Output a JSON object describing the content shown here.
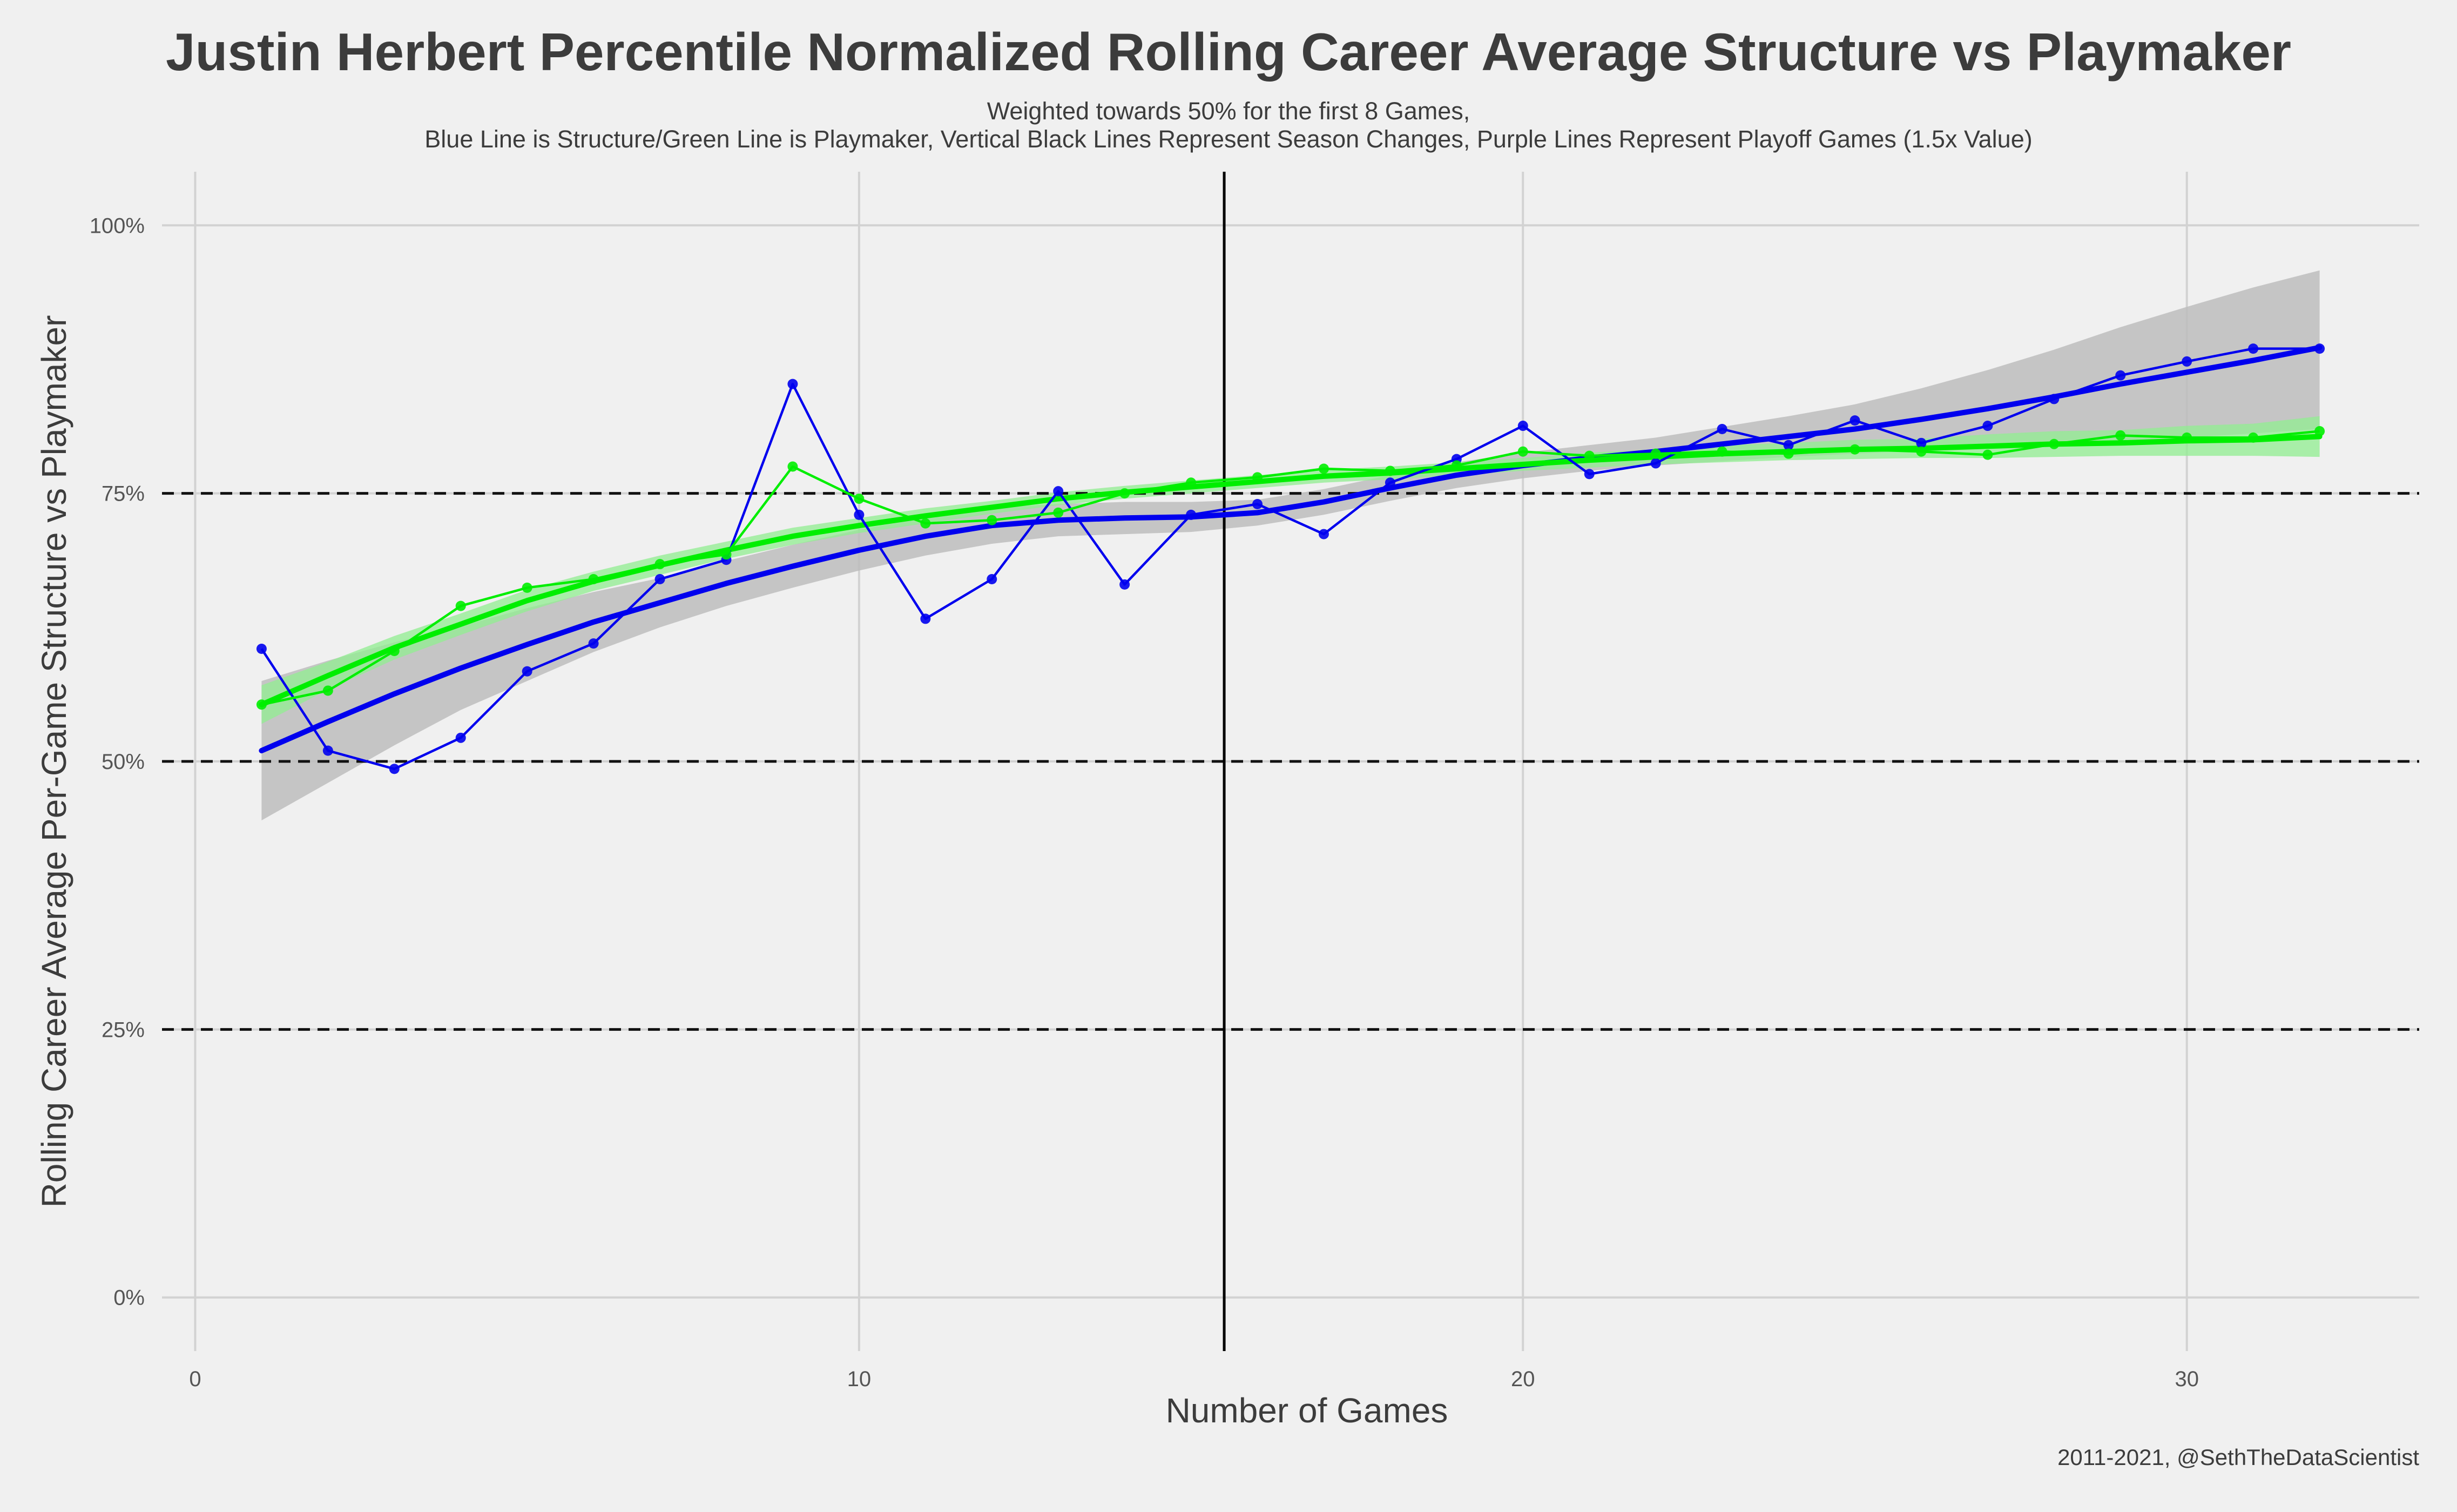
{
  "chart_data": {
    "type": "line",
    "title": "Justin Herbert Percentile Normalized Rolling Career Average Structure vs Playmaker",
    "subtitle_lines": [
      "Weighted towards 50% for the first 8 Games,",
      "Blue Line is Structure/Green Line is Playmaker, Vertical Black Lines Represent Season Changes, Purple Lines Represent Playoff Games (1.5x Value)"
    ],
    "xlabel": "Number of Games",
    "ylabel": "Rolling Career Average Per-Game Structure vs Playmaker",
    "caption": "2011-2021, @SethTheDataScientist",
    "xlim": [
      -0.5,
      33.5
    ],
    "ylim": [
      -0.05,
      1.05
    ],
    "x_ticks": [
      0,
      10,
      20,
      30
    ],
    "y_ticks": [
      0,
      0.25,
      0.5,
      0.75,
      1.0
    ],
    "y_tick_labels": [
      "0%",
      "25%",
      "50%",
      "75%",
      "100%"
    ],
    "dashed_hlines": [
      0.25,
      0.5,
      0.75
    ],
    "season_change_vlines": [
      15.5
    ],
    "grid": true,
    "colors": {
      "structure": "#0000ee",
      "playmaker": "#00ee00",
      "season_line": "#000000",
      "dashed": "#111111",
      "band_structure": "#bdbdbd",
      "band_playmaker": "#90ee90"
    },
    "series": [
      {
        "name": "Structure",
        "color": "#0000ee",
        "x": [
          1,
          2,
          3,
          4,
          5,
          6,
          7,
          8,
          9,
          10,
          11,
          12,
          13,
          14,
          15,
          16,
          17,
          18,
          19,
          20,
          21,
          22,
          23,
          24,
          25,
          26,
          27,
          28,
          29,
          30,
          31,
          32
        ],
        "values": [
          0.605,
          0.51,
          0.493,
          0.522,
          0.584,
          0.61,
          0.67,
          0.688,
          0.852,
          0.73,
          0.633,
          0.67,
          0.752,
          0.665,
          0.73,
          0.74,
          0.712,
          0.76,
          0.782,
          0.813,
          0.768,
          0.778,
          0.81,
          0.795,
          0.818,
          0.797,
          0.813,
          0.838,
          0.86,
          0.873,
          0.885,
          0.885
        ],
        "smooth": [
          0.51,
          0.537,
          0.563,
          0.587,
          0.609,
          0.63,
          0.648,
          0.666,
          0.682,
          0.697,
          0.71,
          0.72,
          0.725,
          0.727,
          0.728,
          0.732,
          0.742,
          0.755,
          0.767,
          0.776,
          0.783,
          0.789,
          0.796,
          0.803,
          0.81,
          0.819,
          0.829,
          0.84,
          0.852,
          0.863,
          0.874,
          0.886
        ],
        "band_lower": [
          0.445,
          0.48,
          0.515,
          0.548,
          0.575,
          0.602,
          0.625,
          0.645,
          0.662,
          0.678,
          0.692,
          0.703,
          0.71,
          0.712,
          0.714,
          0.72,
          0.73,
          0.743,
          0.755,
          0.764,
          0.771,
          0.776,
          0.78,
          0.784,
          0.787,
          0.79,
          0.793,
          0.796,
          0.799,
          0.802,
          0.806,
          0.81
        ],
        "band_upper": [
          0.575,
          0.594,
          0.611,
          0.626,
          0.643,
          0.658,
          0.671,
          0.687,
          0.702,
          0.716,
          0.728,
          0.737,
          0.74,
          0.742,
          0.742,
          0.744,
          0.754,
          0.767,
          0.779,
          0.788,
          0.795,
          0.802,
          0.812,
          0.822,
          0.833,
          0.848,
          0.865,
          0.884,
          0.905,
          0.924,
          0.942,
          0.958
        ]
      },
      {
        "name": "Playmaker",
        "color": "#00ee00",
        "x": [
          1,
          2,
          3,
          4,
          5,
          6,
          7,
          8,
          9,
          10,
          11,
          12,
          13,
          14,
          15,
          16,
          17,
          18,
          19,
          20,
          21,
          22,
          23,
          24,
          25,
          26,
          27,
          28,
          29,
          30,
          31,
          32
        ],
        "values": [
          0.553,
          0.566,
          0.603,
          0.645,
          0.662,
          0.67,
          0.684,
          0.693,
          0.775,
          0.745,
          0.722,
          0.725,
          0.732,
          0.75,
          0.76,
          0.765,
          0.773,
          0.771,
          0.776,
          0.789,
          0.785,
          0.787,
          0.789,
          0.787,
          0.791,
          0.789,
          0.786,
          0.796,
          0.804,
          0.802,
          0.802,
          0.808
        ],
        "smooth": [
          0.553,
          0.58,
          0.606,
          0.628,
          0.65,
          0.668,
          0.683,
          0.697,
          0.71,
          0.72,
          0.729,
          0.737,
          0.745,
          0.751,
          0.756,
          0.761,
          0.766,
          0.769,
          0.773,
          0.777,
          0.781,
          0.784,
          0.787,
          0.789,
          0.791,
          0.792,
          0.794,
          0.796,
          0.797,
          0.799,
          0.8,
          0.803
        ],
        "band_lower": [
          0.535,
          0.567,
          0.595,
          0.618,
          0.64,
          0.659,
          0.674,
          0.689,
          0.702,
          0.713,
          0.722,
          0.731,
          0.739,
          0.745,
          0.75,
          0.755,
          0.76,
          0.763,
          0.767,
          0.771,
          0.774,
          0.777,
          0.779,
          0.781,
          0.782,
          0.783,
          0.783,
          0.784,
          0.785,
          0.785,
          0.785,
          0.784
        ],
        "band_upper": [
          0.571,
          0.593,
          0.617,
          0.638,
          0.66,
          0.677,
          0.692,
          0.705,
          0.718,
          0.727,
          0.736,
          0.743,
          0.751,
          0.757,
          0.762,
          0.767,
          0.772,
          0.775,
          0.779,
          0.783,
          0.788,
          0.791,
          0.795,
          0.797,
          0.8,
          0.801,
          0.805,
          0.808,
          0.809,
          0.813,
          0.815,
          0.822
        ]
      }
    ]
  }
}
